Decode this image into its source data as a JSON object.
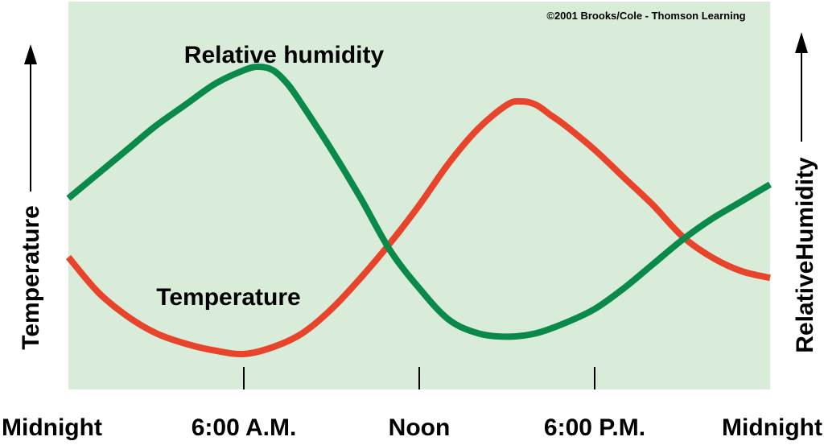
{
  "chart_data": {
    "type": "line",
    "copyright": "©2001 Brooks/Cole - Thomson Learning",
    "left_axis_label": "Temperature",
    "right_axis_label": "RelativeHumidity",
    "x_ticks": [
      "Midnight",
      "6:00 A.M.",
      "Noon",
      "6:00 P.M.",
      "Midnight"
    ],
    "x_tick_hours": [
      0,
      6,
      12,
      18,
      24
    ],
    "xlim": [
      0,
      24
    ],
    "ylim": [
      0,
      100
    ],
    "grid": false,
    "colors": {
      "plot_bg": "#d9ecd9",
      "humidity": "#0a8a4a",
      "temperature": "#e8432b"
    },
    "series": [
      {
        "name": "Relative humidity",
        "x": [
          0,
          1,
          2,
          3,
          4,
          5,
          6,
          6.5,
          7,
          7.5,
          8,
          9,
          10,
          11,
          12,
          13,
          14,
          15,
          16,
          17,
          18,
          19,
          20,
          21,
          22,
          23,
          24
        ],
        "values": [
          52,
          59,
          66,
          73,
          79,
          85,
          89,
          90,
          89,
          85,
          79,
          66,
          52,
          37,
          26,
          17,
          13,
          12,
          13,
          16,
          20,
          26,
          33,
          40,
          46,
          51,
          56
        ]
      },
      {
        "name": "Temperature",
        "x": [
          0,
          1,
          2,
          3,
          4,
          5,
          6,
          7,
          8,
          9,
          10,
          11,
          12,
          13,
          14,
          15,
          15.5,
          16,
          16.5,
          17,
          18,
          19,
          20,
          21,
          22,
          23,
          24
        ],
        "values": [
          35,
          25,
          18,
          13,
          10,
          8,
          7,
          9,
          13,
          20,
          29,
          39,
          50,
          62,
          72,
          79,
          80,
          79,
          76,
          73,
          66,
          58,
          50,
          41,
          35,
          31,
          29
        ]
      }
    ]
  }
}
